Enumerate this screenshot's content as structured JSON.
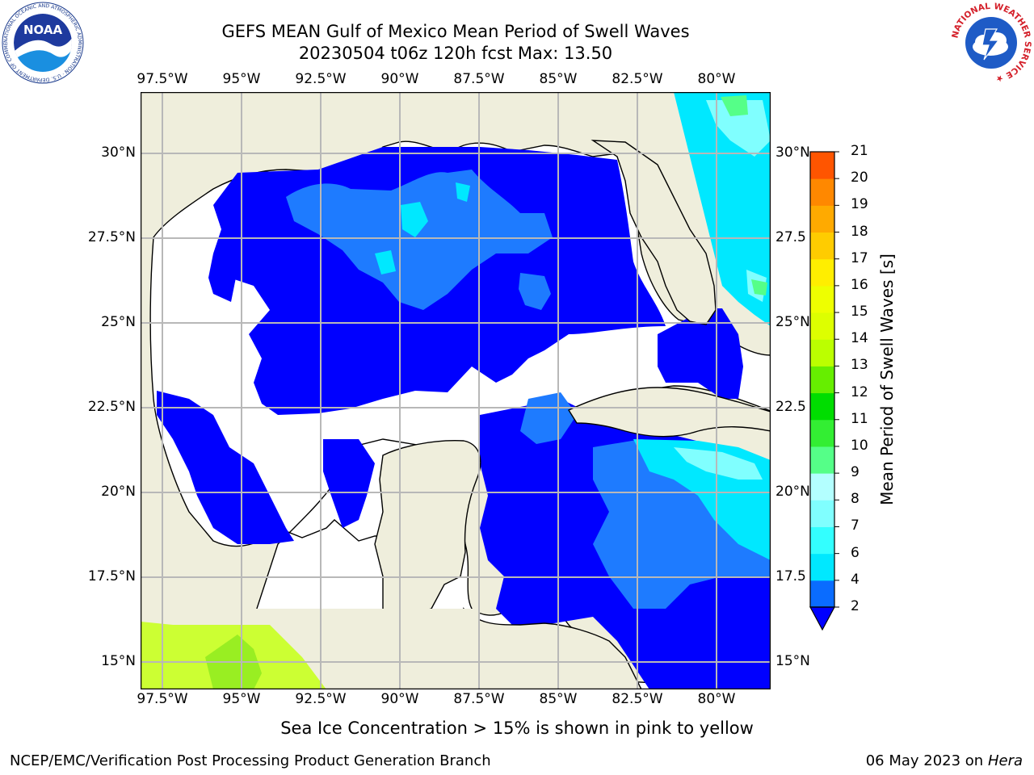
{
  "title": {
    "line1": "GEFS MEAN Gulf of Mexico Mean Period of Swell Waves",
    "line2": "20230504 t06z 120h fcst   Max: 13.50"
  },
  "map": {
    "lon_ticks": [
      "97.5°W",
      "95°W",
      "92.5°W",
      "90°W",
      "87.5°W",
      "85°W",
      "82.5°W",
      "80°W"
    ],
    "lat_ticks_left": [
      "30°N",
      "27.5°N",
      "25°N",
      "22.5°N",
      "20°N",
      "17.5°N",
      "15°N"
    ],
    "lat_ticks_right": [
      "30°N",
      "27.5",
      "25°N",
      "22.5",
      "20°N",
      "17.5",
      "15°N"
    ],
    "land_color": "#efeedc",
    "grid_color": "#b8b8b8"
  },
  "colorbar": {
    "label": "Mean Period of Swell Waves [s]",
    "levels": [
      "2",
      "4",
      "6",
      "7",
      "8",
      "9",
      "10",
      "11",
      "12",
      "13",
      "14",
      "15",
      "16",
      "17",
      "18",
      "19",
      "20",
      "21"
    ],
    "colors": [
      "#0a6cff",
      "#00e8ff",
      "#33ffff",
      "#80ffff",
      "#b3ffff",
      "#55ff88",
      "#33ee33",
      "#00dd00",
      "#66ee00",
      "#bbff00",
      "#ddff00",
      "#eeff00",
      "#ffee00",
      "#ffcc00",
      "#ffaa00",
      "#ff8800",
      "#ff5500",
      "#ff2200",
      "#ff0000"
    ],
    "under_color": "#0000ff"
  },
  "footer": {
    "note": "Sea Ice Concentration > 15% is shown in pink to yellow",
    "credit": "NCEP/EMC/Verification Post Processing Product Generation Branch",
    "date": "06 May 2023 on",
    "host": "Hera"
  },
  "logos": {
    "noaa_text": "NOAA",
    "noaa_ring": "NATIONAL OCEANIC AND ATMOSPHERIC ADMINISTRATION · U.S. DEPARTMENT OF COMMERCE ·",
    "nws_ring": "NATIONAL WEATHER SERVICE ★"
  }
}
